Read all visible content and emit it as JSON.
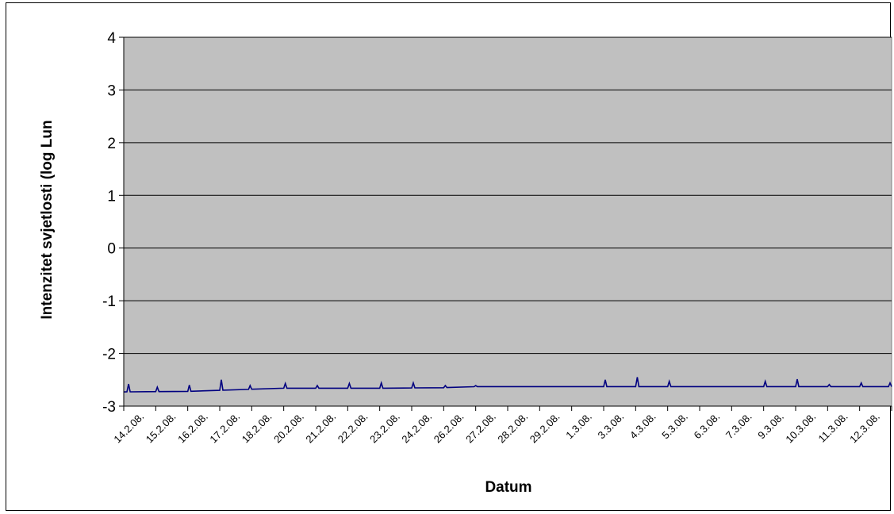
{
  "chart_data": {
    "type": "line",
    "title": "",
    "xlabel": "Datum",
    "ylabel": "Intenzitet svjetlosti (log Lun",
    "ylim": [
      -3,
      4
    ],
    "yticks": [
      "4",
      "3",
      "2",
      "1",
      "0",
      "-1",
      "-2",
      "-3"
    ],
    "grid": true,
    "legend": "none",
    "x_tick_labels": [
      "14.2.08.",
      "15.2.08.",
      "16.2.08.",
      "17.2.08.",
      "18.2.08.",
      "20.2.08.",
      "21.2.08.",
      "22.2.08.",
      "23.2.08.",
      "24.2.08.",
      "26.2.08.",
      "27.2.08.",
      "28.2.08.",
      "29.2.08.",
      "1.3.08.",
      "3.3.08.",
      "4.3.08.",
      "5.3.08.",
      "6.3.08.",
      "7.3.08.",
      "9.3.08.",
      "10.3.08.",
      "11.3.08.",
      "12.3.08."
    ],
    "series": [
      {
        "color": "#000080",
        "baseline": [
          [
            0,
            -2.73
          ],
          [
            2,
            -2.72
          ],
          [
            3,
            -2.7
          ],
          [
            4,
            -2.68
          ],
          [
            5,
            -2.66
          ],
          [
            8,
            -2.66
          ],
          [
            10,
            -2.65
          ],
          [
            11,
            -2.63
          ],
          [
            24,
            -2.63
          ]
        ],
        "spikes": [
          [
            0.15,
            -2.58
          ],
          [
            1.05,
            -2.64
          ],
          [
            2.05,
            -2.6
          ],
          [
            3.05,
            -2.5
          ],
          [
            3.95,
            -2.61
          ],
          [
            5.05,
            -2.57
          ],
          [
            6.05,
            -2.61
          ],
          [
            7.05,
            -2.57
          ],
          [
            8.05,
            -2.56
          ],
          [
            9.05,
            -2.56
          ],
          [
            10.05,
            -2.61
          ],
          [
            11.0,
            -2.61
          ],
          [
            15.05,
            -2.5
          ],
          [
            16.05,
            -2.45
          ],
          [
            17.05,
            -2.53
          ],
          [
            20.05,
            -2.53
          ],
          [
            21.05,
            -2.49
          ],
          [
            22.05,
            -2.59
          ],
          [
            23.05,
            -2.56
          ],
          [
            23.95,
            -2.56
          ]
        ]
      }
    ]
  },
  "colors": {
    "plot_background": "#c0c0c0",
    "gridline": "#000000",
    "series": "#000080"
  }
}
